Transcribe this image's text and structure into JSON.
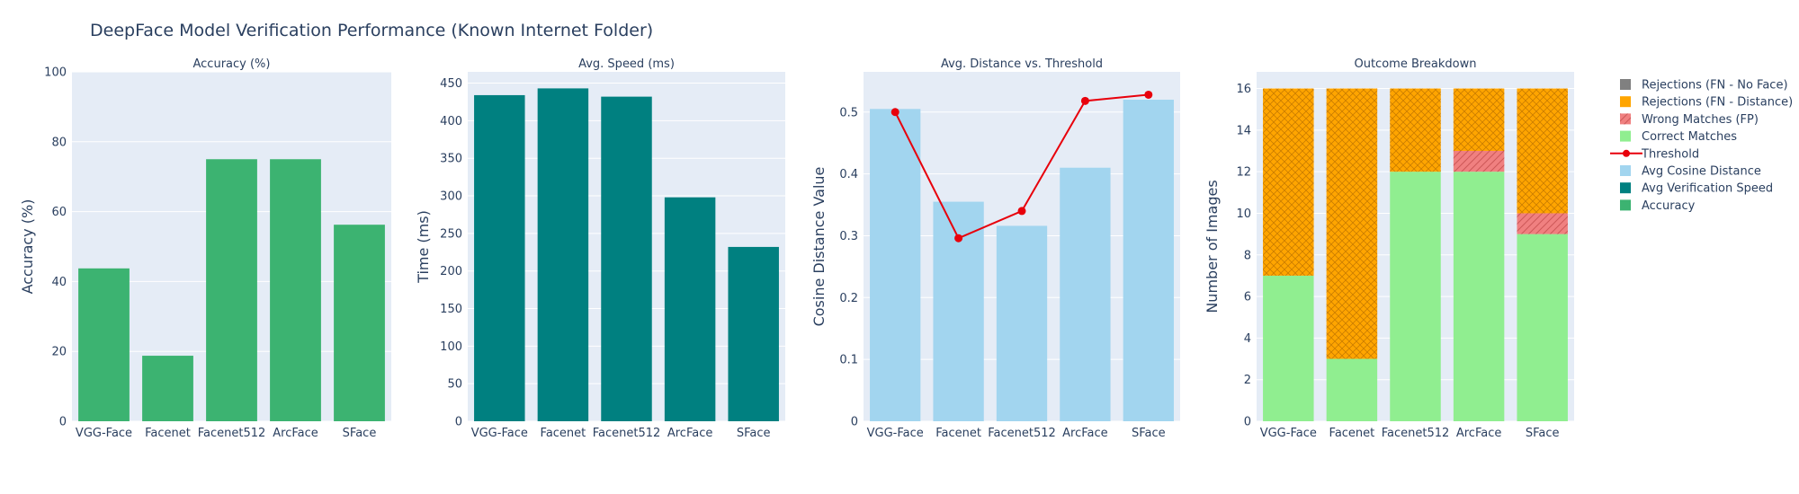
{
  "title": "DeepFace Model Verification Performance (Known Internet Folder)",
  "chart_data": [
    {
      "type": "bar",
      "title": "Accuracy (%)",
      "ylabel": "Accuracy (%)",
      "categories": [
        "VGG-Face",
        "Facenet",
        "Facenet512",
        "ArcFace",
        "SFace"
      ],
      "ylim": [
        0,
        100
      ],
      "yticks": [
        0,
        20,
        40,
        60,
        80,
        100
      ],
      "series": [
        {
          "name": "Accuracy",
          "color": "#3cb371",
          "values": [
            43.75,
            18.75,
            75,
            75,
            56.25
          ]
        }
      ]
    },
    {
      "type": "bar",
      "title": "Avg. Speed (ms)",
      "ylabel": "Time (ms)",
      "categories": [
        "VGG-Face",
        "Facenet",
        "Facenet512",
        "ArcFace",
        "SFace"
      ],
      "ylim": [
        0,
        465
      ],
      "yticks": [
        0,
        50,
        100,
        150,
        200,
        250,
        300,
        350,
        400,
        450
      ],
      "series": [
        {
          "name": "Avg Verification Speed",
          "color": "#008080",
          "values": [
            434,
            443,
            432,
            298,
            232
          ]
        }
      ]
    },
    {
      "type": "bar",
      "title": "Avg. Distance vs. Threshold",
      "ylabel": "Cosine Distance Value",
      "categories": [
        "VGG-Face",
        "Facenet",
        "Facenet512",
        "ArcFace",
        "SFace"
      ],
      "ylim": [
        0,
        0.565
      ],
      "yticks": [
        0,
        0.1,
        0.2,
        0.3,
        0.4,
        0.5
      ],
      "series": [
        {
          "name": "Avg Cosine Distance",
          "color": "#a2d5ef",
          "values": [
            0.505,
            0.355,
            0.316,
            0.41,
            0.52
          ]
        },
        {
          "name": "Threshold",
          "type": "line",
          "color": "#e8000b",
          "values": [
            0.5,
            0.296,
            0.34,
            0.518,
            0.528
          ]
        }
      ]
    },
    {
      "type": "bar",
      "stacked": true,
      "title": "Outcome Breakdown",
      "ylabel": "Number of Images",
      "categories": [
        "VGG-Face",
        "Facenet",
        "Facenet512",
        "ArcFace",
        "SFace"
      ],
      "ylim": [
        0,
        16.8
      ],
      "yticks": [
        0,
        2,
        4,
        6,
        8,
        10,
        12,
        14,
        16
      ],
      "series": [
        {
          "name": "Correct Matches",
          "color": "#90ee90",
          "values": [
            7,
            3,
            12,
            12,
            9
          ]
        },
        {
          "name": "Wrong Matches (FP)",
          "color": "#f08080",
          "pattern": "hatch",
          "values": [
            0,
            0,
            0,
            1,
            1
          ]
        },
        {
          "name": "Rejections (FN - Distance)",
          "color": "#ffa500",
          "pattern": "crosshatch",
          "values": [
            9,
            13,
            4,
            3,
            6
          ]
        },
        {
          "name": "Rejections (FN - No Face)",
          "color": "#808080",
          "values": [
            0,
            0,
            0,
            0,
            0
          ]
        }
      ]
    }
  ],
  "legend": {
    "placement": "right",
    "items": [
      {
        "label": "Rejections (FN - No Face)",
        "color": "#808080",
        "kind": "box"
      },
      {
        "label": "Rejections (FN - Distance)",
        "color": "#ffa500",
        "kind": "box"
      },
      {
        "label": "Wrong Matches (FP)",
        "color": "#f08080",
        "kind": "hatch"
      },
      {
        "label": "Correct Matches",
        "color": "#90ee90",
        "kind": "box"
      },
      {
        "label": "Threshold",
        "color": "#e8000b",
        "kind": "line"
      },
      {
        "label": "Avg Cosine Distance",
        "color": "#a2d5ef",
        "kind": "box"
      },
      {
        "label": "Avg Verification Speed",
        "color": "#008080",
        "kind": "box"
      },
      {
        "label": "Accuracy",
        "color": "#3cb371",
        "kind": "box"
      }
    ]
  }
}
